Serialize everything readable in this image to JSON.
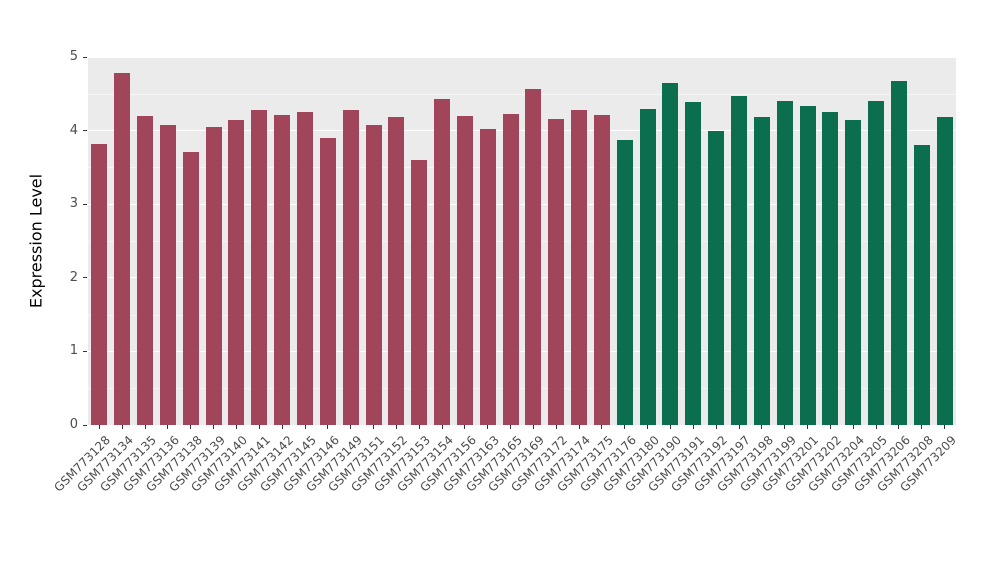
{
  "chart_data": {
    "type": "bar",
    "title": "",
    "xlabel": "",
    "ylabel": "Expression Level",
    "ylim": [
      0,
      5
    ],
    "yticks": [
      0,
      1,
      2,
      3,
      4,
      5
    ],
    "grid": "on",
    "legend": "none",
    "categories": [
      "GSM773128",
      "GSM773134",
      "GSM773135",
      "GSM773136",
      "GSM773138",
      "GSM773139",
      "GSM773140",
      "GSM773141",
      "GSM773142",
      "GSM773145",
      "GSM773146",
      "GSM773149",
      "GSM773151",
      "GSM773152",
      "GSM773153",
      "GSM773154",
      "GSM773156",
      "GSM773163",
      "GSM773165",
      "GSM773169",
      "GSM773172",
      "GSM773174",
      "GSM773175",
      "GSM773176",
      "GSM773180",
      "GSM773190",
      "GSM773191",
      "GSM773192",
      "GSM773197",
      "GSM773198",
      "GSM773199",
      "GSM773201",
      "GSM773202",
      "GSM773204",
      "GSM773205",
      "GSM773206",
      "GSM773208",
      "GSM773209"
    ],
    "values": [
      3.82,
      4.78,
      4.2,
      4.08,
      3.71,
      4.05,
      4.14,
      4.28,
      4.21,
      4.25,
      3.9,
      4.28,
      4.08,
      4.18,
      3.6,
      4.43,
      4.2,
      4.02,
      4.22,
      4.57,
      4.16,
      4.28,
      4.21,
      3.87,
      4.3,
      4.65,
      4.39,
      4.0,
      4.47,
      4.18,
      4.4,
      4.33,
      4.25,
      4.14,
      4.4,
      4.68,
      3.8,
      4.18
    ],
    "groups": [
      0,
      0,
      0,
      0,
      0,
      0,
      0,
      0,
      0,
      0,
      0,
      0,
      0,
      0,
      0,
      0,
      0,
      0,
      0,
      0,
      0,
      0,
      0,
      1,
      1,
      1,
      1,
      1,
      1,
      1,
      1,
      1,
      1,
      1,
      1,
      1,
      1,
      1
    ],
    "group_colors": [
      "#A0455A",
      "#0B6E4F"
    ],
    "panel_background": "#ebebeb",
    "grid_color": "#ffffff"
  }
}
